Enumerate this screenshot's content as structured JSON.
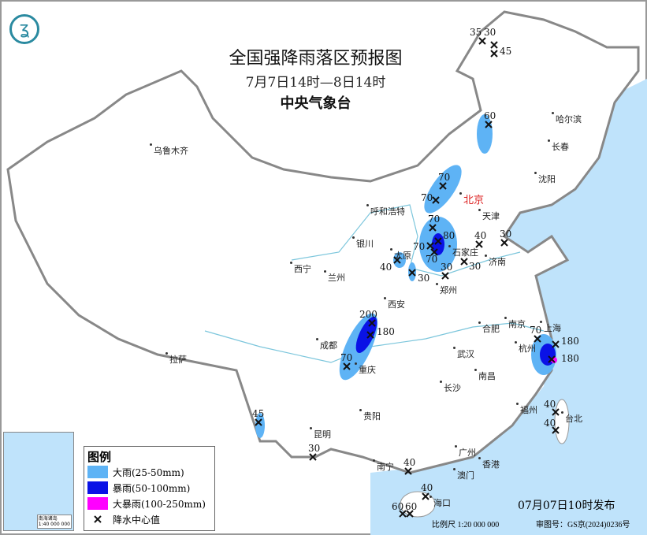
{
  "header": {
    "title": "全国强降雨落区预报图",
    "period": "7月7日14时—8日14时",
    "agency": "中央气象台",
    "logo_icon": "cma-logo"
  },
  "colors": {
    "heavy_rain": "#5eb3f5",
    "rainstorm": "#0a12e6",
    "heavy_rainstorm": "#ff00ff",
    "sea": "#bfe3fb",
    "border": "#888888"
  },
  "cities": [
    "乌鲁木齐",
    "哈尔滨",
    "长春",
    "沈阳",
    "北京",
    "天津",
    "呼和浩特",
    "石家庄",
    "太原",
    "济南",
    "银川",
    "西宁",
    "兰州",
    "郑州",
    "西安",
    "南京",
    "合肥",
    "上海",
    "杭州",
    "成都",
    "重庆",
    "武汉",
    "南昌",
    "拉萨",
    "长沙",
    "贵阳",
    "福州",
    "台北",
    "昆明",
    "南宁",
    "广州",
    "澳门",
    "香港",
    "海口"
  ],
  "rain_centers": [
    "35",
    "30",
    "45",
    "60",
    "70",
    "70",
    "70",
    "80",
    "70",
    "70",
    "40",
    "30",
    "40",
    "30",
    "30",
    "30",
    "200",
    "180",
    "70",
    "70",
    "180",
    "180",
    "40",
    "40",
    "45",
    "30",
    "40",
    "40",
    "60",
    "60"
  ],
  "legend": {
    "title": "图例",
    "items": [
      {
        "label": "大雨(25-50mm)"
      },
      {
        "label": "暴雨(50-100mm)"
      },
      {
        "label": "大暴雨(100-250mm)"
      },
      {
        "label": "降水中心值",
        "icon": "x-mark-icon"
      }
    ]
  },
  "inset": {
    "caption": "南海诸岛",
    "scale": "1:40 000 000"
  },
  "footer": {
    "published": "07月07日10时发布",
    "scale": "比例尺 1:20 000 000",
    "review_no": "审图号：GS京(2024)0236号"
  }
}
